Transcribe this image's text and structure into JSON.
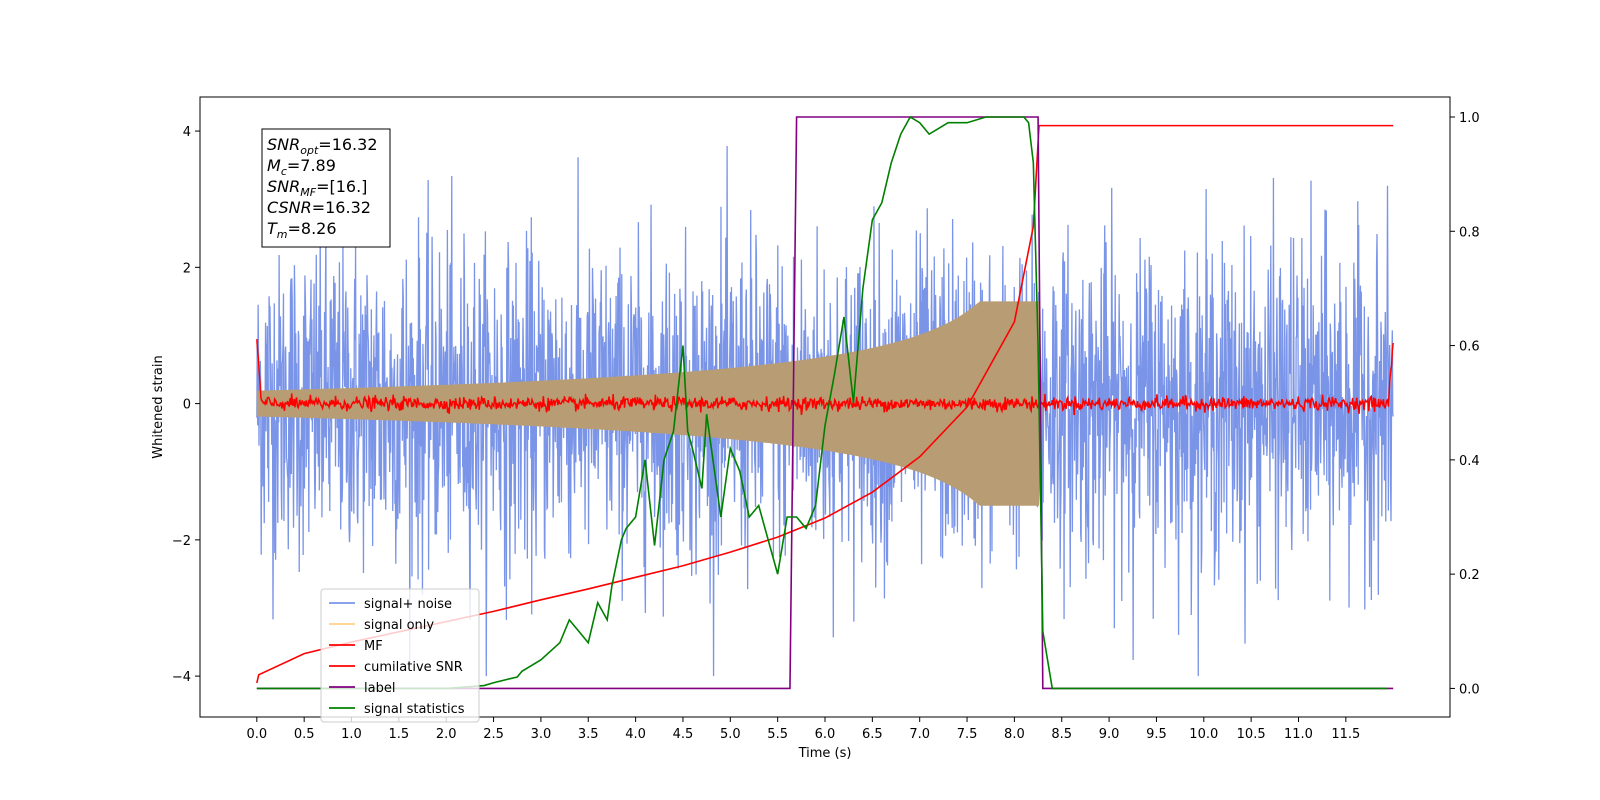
{
  "chart_data": {
    "type": "line",
    "xlabel": "Time (s)",
    "ylabel": "Whitened strain",
    "xlim": [
      -0.6,
      12.6
    ],
    "ylim": [
      -4.6,
      4.5
    ],
    "y2lim": [
      -0.05,
      1.035
    ],
    "xticks": [
      0.0,
      0.5,
      1.0,
      1.5,
      2.0,
      2.5,
      3.0,
      3.5,
      4.0,
      4.5,
      5.0,
      5.5,
      6.0,
      6.5,
      7.0,
      7.5,
      8.0,
      8.5,
      9.0,
      9.5,
      10.0,
      10.5,
      11.0,
      11.5
    ],
    "yticks": [
      -4,
      -2,
      0,
      2,
      4
    ],
    "y2ticks": [
      0.0,
      0.2,
      0.4,
      0.6,
      0.8,
      1.0
    ],
    "grid": false,
    "legend_position": "lower-left",
    "annotation": [
      {
        "sym": "SNR",
        "sub": "opt",
        "eq": "=16.32"
      },
      {
        "sym": "M",
        "sub": "c",
        "eq": "=7.89"
      },
      {
        "sym": "SNR",
        "sub": "MF",
        "eq": "=[16.]"
      },
      {
        "sym": "CSNR",
        "sub": "",
        "eq": "=16.32"
      },
      {
        "sym": "T",
        "sub": "m",
        "eq": "=8.26"
      }
    ],
    "series": [
      {
        "name": "signal+ noise",
        "color": "#7a94e8",
        "kind": "noise",
        "x_range": [
          0.0,
          12.0
        ],
        "amplitude": 4.0
      },
      {
        "name": "signal only",
        "color": "#ffd08a",
        "kind": "chirp",
        "x_range": [
          0.0,
          8.26
        ],
        "envelope_end": 1.5,
        "envelope_start": 0.05
      },
      {
        "name": "MF",
        "color": "#ff0000",
        "kind": "noise-small",
        "x_range": [
          0.0,
          12.0
        ],
        "amplitude": 0.2
      },
      {
        "name": "cumilative SNR",
        "color": "#ff0000",
        "kind": "curve",
        "axis": "left",
        "x": [
          0.0,
          0.02,
          0.5,
          1.0,
          1.5,
          2.0,
          2.5,
          3.0,
          3.5,
          4.0,
          4.5,
          5.0,
          5.5,
          6.0,
          6.5,
          7.0,
          7.5,
          8.0,
          8.2,
          8.26,
          12.0
        ],
        "y": [
          -4.1,
          -3.98,
          -3.67,
          -3.5,
          -3.35,
          -3.2,
          -3.05,
          -2.88,
          -2.72,
          -2.55,
          -2.38,
          -2.18,
          -1.96,
          -1.68,
          -1.3,
          -0.78,
          -0.05,
          1.2,
          2.6,
          4.08,
          4.08
        ]
      },
      {
        "name": "label",
        "color": "#800080",
        "kind": "step",
        "axis": "right",
        "x": [
          0.0,
          5.63,
          5.7,
          8.25,
          8.3,
          12.0
        ],
        "y": [
          0,
          0,
          1,
          1,
          0,
          0
        ]
      },
      {
        "name": "signal statistics",
        "color": "#008000",
        "kind": "line",
        "axis": "right",
        "x": [
          0.0,
          0.5,
          1.0,
          1.5,
          2.0,
          2.4,
          2.5,
          2.75,
          2.8,
          2.9,
          3.0,
          3.2,
          3.3,
          3.5,
          3.6,
          3.7,
          3.75,
          3.8,
          3.85,
          3.9,
          4.0,
          4.1,
          4.2,
          4.3,
          4.4,
          4.5,
          4.55,
          4.6,
          4.7,
          4.75,
          4.8,
          4.9,
          5.0,
          5.1,
          5.2,
          5.3,
          5.4,
          5.5,
          5.6,
          5.7,
          5.8,
          5.9,
          6.0,
          6.1,
          6.2,
          6.3,
          6.4,
          6.5,
          6.6,
          6.7,
          6.8,
          6.9,
          7.0,
          7.1,
          7.2,
          7.3,
          7.5,
          7.7,
          7.9,
          8.0,
          8.1,
          8.15,
          8.2,
          8.25,
          8.3,
          8.4,
          9.0,
          10.0,
          11.0,
          11.94
        ],
        "y": [
          0.0,
          0.0,
          0.0,
          0.0,
          0.0,
          0.005,
          0.01,
          0.02,
          0.03,
          0.04,
          0.05,
          0.08,
          0.12,
          0.08,
          0.15,
          0.12,
          0.18,
          0.22,
          0.26,
          0.28,
          0.3,
          0.4,
          0.25,
          0.4,
          0.45,
          0.6,
          0.45,
          0.42,
          0.35,
          0.48,
          0.42,
          0.3,
          0.42,
          0.38,
          0.3,
          0.32,
          0.26,
          0.2,
          0.3,
          0.3,
          0.28,
          0.32,
          0.46,
          0.55,
          0.65,
          0.5,
          0.7,
          0.82,
          0.85,
          0.92,
          0.97,
          1.0,
          0.99,
          0.97,
          0.98,
          0.99,
          0.99,
          1.0,
          1.0,
          1.0,
          1.0,
          0.99,
          0.92,
          0.6,
          0.1,
          0.0,
          0.0,
          0.0,
          0.0,
          0.0
        ]
      }
    ]
  }
}
